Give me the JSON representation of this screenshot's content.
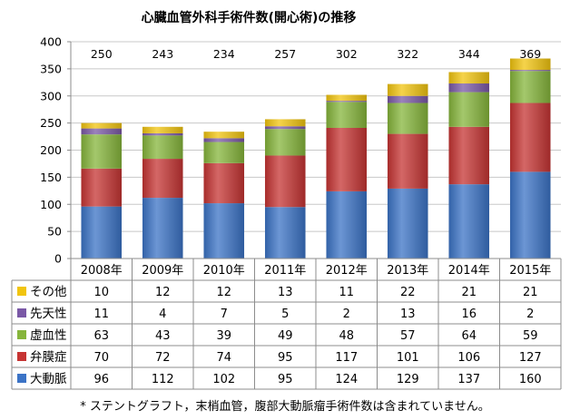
{
  "chart_data": {
    "type": "bar",
    "stacked": true,
    "title": "心臓血管外科手術件数(開心術)の推移",
    "categories": [
      "2008年",
      "2009年",
      "2010年",
      "2011年",
      "2012年",
      "2013年",
      "2014年",
      "2015年"
    ],
    "totals": [
      "250",
      "243",
      "234",
      "257",
      "302",
      "322",
      "344",
      "369"
    ],
    "ylim": [
      0,
      400
    ],
    "yticks": [
      "0",
      "50",
      "100",
      "150",
      "200",
      "250",
      "300",
      "350",
      "400"
    ],
    "grid": true,
    "series": [
      {
        "name": "大動脈",
        "color": "#3b73c6",
        "values": [
          96,
          112,
          102,
          95,
          124,
          129,
          137,
          160
        ]
      },
      {
        "name": "弁膜症",
        "color": "#c63433",
        "values": [
          70,
          72,
          74,
          95,
          117,
          101,
          106,
          127
        ]
      },
      {
        "name": "虚血性",
        "color": "#86b53b",
        "values": [
          63,
          43,
          39,
          49,
          48,
          57,
          64,
          59
        ]
      },
      {
        "name": "先天性",
        "color": "#7a58a6",
        "values": [
          11,
          4,
          7,
          5,
          2,
          13,
          16,
          2
        ]
      },
      {
        "name": "その他",
        "color": "#f1c40f",
        "values": [
          10,
          12,
          12,
          13,
          11,
          22,
          21,
          21
        ]
      }
    ],
    "footnote": "* ステントグラフト，末梢血管，腹部大動脈瘤手術件数は含まれていません。"
  }
}
